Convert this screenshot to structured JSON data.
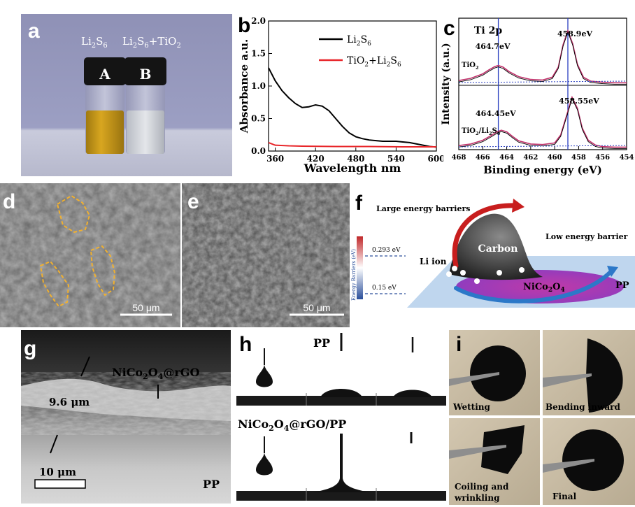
{
  "labels": {
    "a": "a",
    "b": "b",
    "c": "c",
    "d": "d",
    "e": "e",
    "f": "f",
    "g": "g",
    "h": "h",
    "i": "i"
  },
  "panel_a": {
    "vial_a_title": "Li",
    "vial_a_sub": "2",
    "vial_a_title2": "S",
    "vial_a_sub2": "6",
    "vial_b_title": "Li",
    "vial_b_sub": "2",
    "vial_b_title2": "S",
    "vial_b_sub2": "6",
    "vial_b_title3": "+TiO",
    "vial_b_sub3": "2",
    "vial_a_letter": "A",
    "vial_b_letter": "B"
  },
  "panel_d": {
    "scale": "50 μm"
  },
  "panel_e": {
    "scale": "50 μm"
  },
  "panel_f": {
    "large_barrier": "Large energy barriers",
    "low_barrier": "Low energy barrier",
    "carbon": "Carbon",
    "li_ion": "Li ion",
    "nico": "NiCo",
    "nico_sub1": "2",
    "nico_o": "O",
    "nico_sub2": "4",
    "pp": "PP",
    "axis_label": "Energy Barriers (eV)",
    "level_high": "0.293 eV",
    "level_low": "0.15 eV"
  },
  "panel_g": {
    "thickness": "9.6 μm",
    "coating": "NiCo",
    "coating_sub1": "2",
    "coating_o": "O",
    "coating_sub2": "4",
    "coating_rest": "@rGO",
    "scale": "10 μm",
    "substrate": "PP"
  },
  "panel_h": {
    "top_label": "PP",
    "bottom_label": "NiCo",
    "bottom_sub1": "2",
    "bottom_o": "O",
    "bottom_sub2": "4",
    "bottom_rest": "@rGO/PP"
  },
  "panel_i": {
    "q1": "Wetting",
    "q2": "Bending inward",
    "q3a": "Coiling and",
    "q3b": "wrinkling",
    "q4": "Final"
  },
  "chart_data": [
    {
      "type": "line",
      "panel": "b",
      "xlabel": "Wavelength nm",
      "ylabel": "Absorbance a.u.",
      "xlim": [
        350,
        600
      ],
      "ylim": [
        0,
        2.0
      ],
      "xticks": [
        360,
        420,
        480,
        540,
        600
      ],
      "yticks": [
        0.0,
        0.5,
        1.0,
        1.5,
        2.0
      ],
      "legend_position": "top-right",
      "series": [
        {
          "name": "Li2S6",
          "legend_main": "Li",
          "legend_sub1": "2",
          "legend_mid": "S",
          "legend_sub2": "6",
          "color": "#000000",
          "x": [
            350,
            360,
            370,
            380,
            390,
            400,
            410,
            420,
            430,
            440,
            450,
            460,
            470,
            480,
            490,
            500,
            510,
            520,
            530,
            540,
            550,
            560,
            570,
            580,
            590,
            600
          ],
          "y": [
            1.28,
            1.08,
            0.93,
            0.82,
            0.73,
            0.67,
            0.68,
            0.71,
            0.69,
            0.62,
            0.5,
            0.38,
            0.28,
            0.22,
            0.19,
            0.17,
            0.16,
            0.15,
            0.15,
            0.15,
            0.14,
            0.13,
            0.11,
            0.09,
            0.07,
            0.06
          ]
        },
        {
          "name": "TiO2+Li2S6",
          "legend_main": "TiO",
          "legend_sub1": "2",
          "legend_mid": "+Li",
          "legend_sub2": "2",
          "legend_end": "S",
          "legend_sub3": "6",
          "color": "#e8262a",
          "x": [
            350,
            360,
            380,
            400,
            450,
            500,
            550,
            600
          ],
          "y": [
            0.13,
            0.09,
            0.08,
            0.075,
            0.07,
            0.07,
            0.065,
            0.065
          ]
        }
      ]
    },
    {
      "type": "line",
      "panel": "c",
      "title": "Ti 2p",
      "xlabel": "Binding energy (eV)",
      "ylabel": "Intensity (a.u.)",
      "xlim": [
        468,
        454
      ],
      "xticks": [
        468,
        466,
        464,
        462,
        460,
        458,
        456,
        454
      ],
      "reference_lines_eV": [
        464.7,
        458.9
      ],
      "subplots": [
        {
          "label": "TiO",
          "label_sub": "2",
          "peaks": [
            {
              "position": 464.7,
              "text": "464.7eV"
            },
            {
              "position": 458.9,
              "text": "458.9eV"
            }
          ],
          "x": [
            468,
            467,
            466,
            465.5,
            465,
            464.7,
            464.3,
            463.8,
            463,
            462,
            461,
            460.2,
            459.7,
            459.3,
            458.9,
            458.5,
            458.1,
            457.6,
            457,
            456,
            455,
            454
          ],
          "y": [
            0.06,
            0.1,
            0.18,
            0.25,
            0.31,
            0.33,
            0.3,
            0.22,
            0.13,
            0.08,
            0.07,
            0.12,
            0.3,
            0.7,
            0.95,
            0.72,
            0.35,
            0.12,
            0.05,
            0.03,
            0.02,
            0.02
          ]
        },
        {
          "label": "TiO",
          "label_sub": "2",
          "label_rest": "/Li",
          "label_sub2": "2",
          "label_end": "S",
          "label_sub3": "6",
          "peaks": [
            {
              "position": 464.45,
              "text": "464.45eV"
            },
            {
              "position": 458.55,
              "text": "458.55eV"
            }
          ],
          "x": [
            468,
            467,
            466,
            465.3,
            464.8,
            464.45,
            464.0,
            463.5,
            463,
            462,
            461,
            460,
            459.5,
            459,
            458.55,
            458.1,
            457.7,
            457.2,
            456.6,
            456,
            455,
            454
          ],
          "y": [
            0.05,
            0.08,
            0.15,
            0.24,
            0.31,
            0.34,
            0.31,
            0.22,
            0.14,
            0.08,
            0.07,
            0.1,
            0.25,
            0.62,
            0.96,
            0.75,
            0.38,
            0.15,
            0.06,
            0.03,
            0.02,
            0.02
          ]
        }
      ]
    }
  ]
}
